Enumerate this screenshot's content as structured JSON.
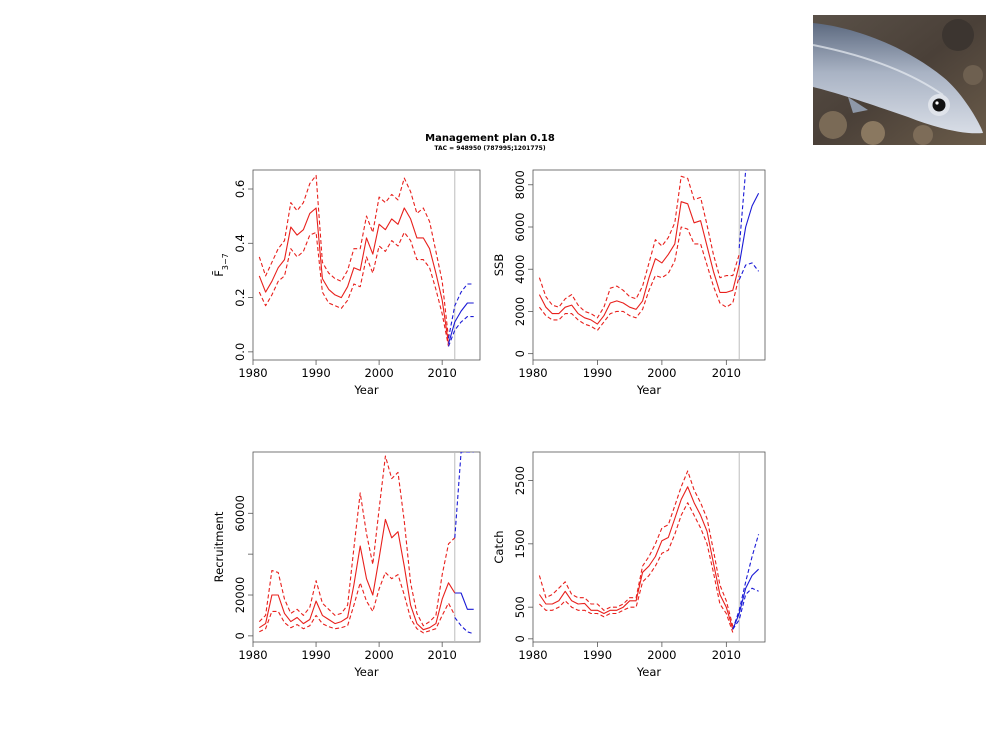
{
  "title": "Management plan 0.18",
  "subtitle": "TAC = 948950 (787995;1201775)",
  "photo": {
    "subject": "fish-photo"
  },
  "colors": {
    "historic": "#e8201c",
    "forecast": "#1a1ad6",
    "divider": "#bdbdbd"
  },
  "chart_data": [
    {
      "type": "line",
      "id": "F",
      "ylabel": "F̄",
      "ylabel_sub": "3−7",
      "xlabel": "Year",
      "xlim": [
        1980,
        2016
      ],
      "ylim": [
        -0.03,
        0.67
      ],
      "xticks": [
        1980,
        1990,
        2000,
        2010
      ],
      "yticks": [
        0.0,
        0.2,
        0.4,
        0.6
      ],
      "ytick_labels": [
        "0.0",
        "0.2",
        "0.4",
        "0.6"
      ],
      "divider_x": 2012,
      "historic": {
        "x": [
          1981,
          1982,
          1983,
          1984,
          1985,
          1986,
          1987,
          1988,
          1989,
          1990,
          1991,
          1992,
          1993,
          1994,
          1995,
          1996,
          1997,
          1998,
          1999,
          2000,
          2001,
          2002,
          2003,
          2004,
          2005,
          2006,
          2007,
          2008,
          2009,
          2010,
          2011
        ],
        "median": [
          0.28,
          0.22,
          0.26,
          0.31,
          0.34,
          0.46,
          0.43,
          0.45,
          0.51,
          0.53,
          0.27,
          0.23,
          0.21,
          0.2,
          0.24,
          0.31,
          0.3,
          0.42,
          0.36,
          0.47,
          0.45,
          0.49,
          0.47,
          0.53,
          0.49,
          0.42,
          0.42,
          0.38,
          0.29,
          0.19,
          0.03
        ],
        "upper": [
          0.35,
          0.28,
          0.33,
          0.38,
          0.41,
          0.55,
          0.52,
          0.55,
          0.62,
          0.65,
          0.33,
          0.29,
          0.27,
          0.26,
          0.3,
          0.38,
          0.38,
          0.5,
          0.44,
          0.57,
          0.55,
          0.58,
          0.56,
          0.64,
          0.59,
          0.51,
          0.53,
          0.48,
          0.37,
          0.26,
          0.05
        ],
        "lower": [
          0.22,
          0.17,
          0.21,
          0.26,
          0.28,
          0.38,
          0.35,
          0.37,
          0.43,
          0.44,
          0.22,
          0.18,
          0.17,
          0.16,
          0.19,
          0.25,
          0.24,
          0.35,
          0.29,
          0.39,
          0.37,
          0.41,
          0.39,
          0.44,
          0.41,
          0.34,
          0.34,
          0.31,
          0.23,
          0.14,
          0.02
        ]
      },
      "forecast": {
        "x": [
          2011,
          2012,
          2013,
          2014,
          2015
        ],
        "median": [
          0.03,
          0.11,
          0.15,
          0.18,
          0.18
        ],
        "upper": [
          0.05,
          0.17,
          0.22,
          0.25,
          0.25
        ],
        "lower": [
          0.02,
          0.08,
          0.11,
          0.13,
          0.13
        ]
      }
    },
    {
      "type": "line",
      "id": "SSB",
      "ylabel": "SSB",
      "xlabel": "Year",
      "xlim": [
        1980,
        2016
      ],
      "ylim": [
        -300,
        8700
      ],
      "xticks": [
        1980,
        1990,
        2000,
        2010
      ],
      "yticks": [
        0,
        2000,
        4000,
        6000,
        8000
      ],
      "ytick_labels": [
        "0",
        "2000",
        "4000",
        "6000",
        "8000"
      ],
      "divider_x": 2012,
      "historic": {
        "x": [
          1981,
          1982,
          1983,
          1984,
          1985,
          1986,
          1987,
          1988,
          1989,
          1990,
          1991,
          1992,
          1993,
          1994,
          1995,
          1996,
          1997,
          1998,
          1999,
          2000,
          2001,
          2002,
          2003,
          2004,
          2005,
          2006,
          2007,
          2008,
          2009,
          2010,
          2011,
          2012
        ],
        "median": [
          2800,
          2200,
          1900,
          1900,
          2200,
          2300,
          1900,
          1700,
          1600,
          1400,
          1800,
          2400,
          2500,
          2400,
          2200,
          2100,
          2500,
          3600,
          4500,
          4300,
          4700,
          5200,
          7200,
          7100,
          6200,
          6300,
          5100,
          3900,
          2900,
          2900,
          3000,
          4200
        ],
        "upper": [
          3600,
          2700,
          2300,
          2200,
          2600,
          2800,
          2300,
          2000,
          1900,
          1700,
          2200,
          3100,
          3200,
          3000,
          2700,
          2600,
          3200,
          4300,
          5400,
          5100,
          5500,
          6200,
          8400,
          8300,
          7300,
          7400,
          6100,
          4700,
          3600,
          3700,
          3700,
          4700
        ],
        "lower": [
          2200,
          1800,
          1600,
          1600,
          1900,
          1900,
          1600,
          1400,
          1300,
          1100,
          1500,
          1900,
          2000,
          2000,
          1800,
          1700,
          2100,
          3000,
          3700,
          3600,
          3800,
          4400,
          6000,
          5900,
          5200,
          5200,
          4200,
          3200,
          2400,
          2200,
          2400,
          3700
        ]
      },
      "forecast": {
        "x": [
          2012,
          2013,
          2014,
          2015
        ],
        "median": [
          4200,
          6000,
          7000,
          7600
        ],
        "upper": [
          5000,
          8700,
          8800,
          8800
        ],
        "lower": [
          3500,
          4200,
          4300,
          3900
        ]
      }
    },
    {
      "type": "line",
      "id": "Recruitment",
      "ylabel": "Recruitment",
      "xlabel": "Year",
      "xlim": [
        1980,
        2016
      ],
      "ylim": [
        -3000,
        90000
      ],
      "xticks": [
        1980,
        1990,
        2000,
        2010
      ],
      "yticks": [
        0,
        20000,
        40000,
        60000
      ],
      "ytick_labels": [
        "0",
        "20000",
        "",
        "60000"
      ],
      "divider_x": 2012,
      "historic": {
        "x": [
          1981,
          1982,
          1983,
          1984,
          1985,
          1986,
          1987,
          1988,
          1989,
          1990,
          1991,
          1992,
          1993,
          1994,
          1995,
          1996,
          1997,
          1998,
          1999,
          2000,
          2001,
          2002,
          2003,
          2004,
          2005,
          2006,
          2007,
          2008,
          2009,
          2010,
          2011,
          2012
        ],
        "median": [
          4000,
          6000,
          20000,
          20000,
          11000,
          7000,
          9000,
          6000,
          8000,
          17000,
          10000,
          8000,
          6000,
          7000,
          9000,
          25000,
          44000,
          28000,
          20000,
          38000,
          57000,
          48000,
          51000,
          34000,
          15000,
          6000,
          3000,
          4000,
          6000,
          18000,
          26000,
          21000
        ],
        "upper": [
          7000,
          10000,
          32000,
          31000,
          18000,
          11000,
          13000,
          10000,
          14000,
          27000,
          16000,
          13000,
          10000,
          11000,
          15000,
          43000,
          70000,
          50000,
          35000,
          62000,
          88000,
          77000,
          80000,
          56000,
          26000,
          11000,
          5000,
          7000,
          10000,
          30000,
          45000,
          48000
        ],
        "lower": [
          2000,
          3500,
          12000,
          12000,
          6500,
          4000,
          5500,
          3500,
          5000,
          10000,
          6000,
          4500,
          3500,
          4000,
          5000,
          15000,
          26000,
          17000,
          12000,
          23000,
          31000,
          28000,
          30000,
          20000,
          8500,
          3500,
          1500,
          2500,
          3500,
          10000,
          16000,
          10000
        ]
      },
      "forecast": {
        "x": [
          2012,
          2013,
          2014,
          2015
        ],
        "median": [
          21000,
          21000,
          13000,
          13000
        ],
        "upper": [
          48000,
          90000,
          90000,
          90000
        ],
        "lower": [
          9000,
          5000,
          2000,
          1000
        ]
      }
    },
    {
      "type": "line",
      "id": "Catch",
      "ylabel": "Catch",
      "xlabel": "Year",
      "xlim": [
        1980,
        2016
      ],
      "ylim": [
        -50,
        2950
      ],
      "xticks": [
        1980,
        1990,
        2000,
        2010
      ],
      "yticks": [
        0,
        500,
        1500,
        2500
      ],
      "ytick_labels": [
        "0",
        "500",
        "1500",
        "2500"
      ],
      "divider_x": 2012,
      "historic": {
        "x": [
          1981,
          1982,
          1983,
          1984,
          1985,
          1986,
          1987,
          1988,
          1989,
          1990,
          1991,
          1992,
          1993,
          1994,
          1995,
          1996,
          1997,
          1998,
          1999,
          2000,
          2001,
          2002,
          2003,
          2004,
          2005,
          2006,
          2007,
          2008,
          2009,
          2010,
          2011
        ],
        "median": [
          700,
          550,
          550,
          600,
          750,
          600,
          550,
          560,
          450,
          450,
          400,
          450,
          450,
          500,
          600,
          600,
          1050,
          1150,
          1300,
          1550,
          1600,
          1900,
          2200,
          2400,
          2150,
          1950,
          1700,
          1200,
          700,
          500,
          150
        ],
        "upper": [
          1000,
          650,
          700,
          800,
          900,
          700,
          650,
          650,
          550,
          550,
          450,
          500,
          500,
          550,
          650,
          650,
          1150,
          1300,
          1500,
          1750,
          1800,
          2100,
          2400,
          2650,
          2350,
          2150,
          1900,
          1400,
          850,
          600,
          200
        ],
        "lower": [
          550,
          450,
          450,
          500,
          600,
          500,
          450,
          450,
          400,
          400,
          350,
          400,
          400,
          450,
          500,
          500,
          900,
          1000,
          1150,
          1350,
          1400,
          1650,
          1950,
          2150,
          1950,
          1750,
          1500,
          1050,
          550,
          400,
          100
        ]
      },
      "forecast": {
        "x": [
          2011,
          2012,
          2013,
          2014,
          2015
        ],
        "median": [
          150,
          400,
          800,
          1000,
          1100
        ],
        "upper": [
          150,
          450,
          900,
          1300,
          1650
        ],
        "lower": [
          150,
          300,
          700,
          800,
          750
        ]
      }
    }
  ]
}
